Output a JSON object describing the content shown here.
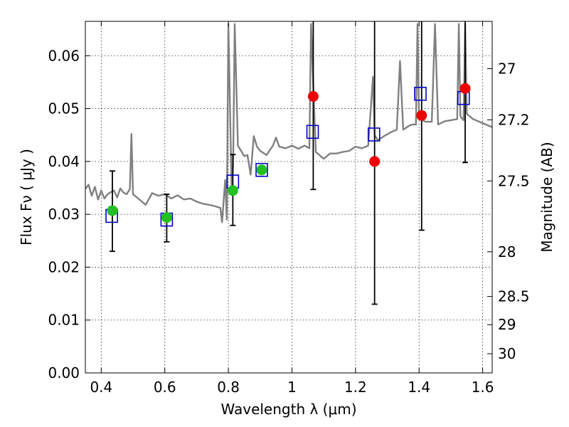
{
  "chart_data": {
    "type": "scatter",
    "xlabel": "Wavelength  λ (μm)",
    "ylabel": "Flux  Fν  ( μJy )",
    "y2label": "Magnitude (AB)",
    "xlim": [
      0.35,
      1.63
    ],
    "ylim": [
      0.0,
      0.0665
    ],
    "grid": true,
    "x_ticks": [
      0.4,
      0.6,
      0.8,
      1.0,
      1.2,
      1.4,
      1.6
    ],
    "x_tick_labels": [
      "0.4",
      "0.6",
      "0.8",
      "1",
      "1.2",
      "1.4",
      "1.6"
    ],
    "y_ticks": [
      0.0,
      0.01,
      0.02,
      0.03,
      0.04,
      0.05,
      0.06
    ],
    "y_tick_labels": [
      "0.00",
      "0.01",
      "0.02",
      "0.03",
      "0.04",
      "0.05",
      "0.06"
    ],
    "y2_ticks": [
      {
        "label": "27",
        "mag": 27.0
      },
      {
        "label": "27.2",
        "mag": 27.2
      },
      {
        "label": "27.5",
        "mag": 27.5
      },
      {
        "label": "28",
        "mag": 28.0
      },
      {
        "label": "28.5",
        "mag": 28.5
      },
      {
        "label": "29",
        "mag": 29.0
      },
      {
        "label": "30",
        "mag": 30.0
      }
    ],
    "colors": {
      "spectrum": "#808080",
      "model_box": "#0000cc",
      "detection": "#22c022",
      "upper_limit": "#ee0000",
      "errorbar": "#000000"
    },
    "spectrum": [
      [
        0.35,
        0.0348
      ],
      [
        0.36,
        0.0356
      ],
      [
        0.37,
        0.0335
      ],
      [
        0.38,
        0.0352
      ],
      [
        0.39,
        0.0328
      ],
      [
        0.4,
        0.0345
      ],
      [
        0.41,
        0.033
      ],
      [
        0.42,
        0.0338
      ],
      [
        0.43,
        0.0342
      ],
      [
        0.44,
        0.0345
      ],
      [
        0.45,
        0.0332
      ],
      [
        0.46,
        0.0349
      ],
      [
        0.47,
        0.0341
      ],
      [
        0.48,
        0.0338
      ],
      [
        0.49,
        0.0348
      ],
      [
        0.495,
        0.0452
      ],
      [
        0.5,
        0.0338
      ],
      [
        0.52,
        0.0328
      ],
      [
        0.54,
        0.0318
      ],
      [
        0.56,
        0.034
      ],
      [
        0.58,
        0.0335
      ],
      [
        0.6,
        0.0338
      ],
      [
        0.62,
        0.033
      ],
      [
        0.64,
        0.0336
      ],
      [
        0.66,
        0.0328
      ],
      [
        0.68,
        0.033
      ],
      [
        0.7,
        0.0324
      ],
      [
        0.72,
        0.032
      ],
      [
        0.74,
        0.0318
      ],
      [
        0.76,
        0.0315
      ],
      [
        0.775,
        0.0312
      ],
      [
        0.78,
        0.0285
      ],
      [
        0.79,
        0.0365
      ],
      [
        0.795,
        0.029
      ],
      [
        0.8,
        0.066
      ],
      [
        0.81,
        0.035
      ],
      [
        0.815,
        0.0395
      ],
      [
        0.82,
        0.066
      ],
      [
        0.83,
        0.043
      ],
      [
        0.84,
        0.042
      ],
      [
        0.85,
        0.041
      ],
      [
        0.86,
        0.0412
      ],
      [
        0.87,
        0.0375
      ],
      [
        0.88,
        0.0448
      ],
      [
        0.89,
        0.0428
      ],
      [
        0.9,
        0.042
      ],
      [
        0.92,
        0.0412
      ],
      [
        0.94,
        0.043
      ],
      [
        0.95,
        0.0445
      ],
      [
        0.96,
        0.0428
      ],
      [
        0.98,
        0.0425
      ],
      [
        1.0,
        0.043
      ],
      [
        1.02,
        0.0424
      ],
      [
        1.04,
        0.043
      ],
      [
        1.055,
        0.0425
      ],
      [
        1.06,
        0.066
      ],
      [
        1.075,
        0.0418
      ],
      [
        1.09,
        0.041
      ],
      [
        1.1,
        0.0405
      ],
      [
        1.12,
        0.0415
      ],
      [
        1.14,
        0.0415
      ],
      [
        1.16,
        0.0418
      ],
      [
        1.18,
        0.042
      ],
      [
        1.2,
        0.0428
      ],
      [
        1.22,
        0.0425
      ],
      [
        1.24,
        0.043
      ],
      [
        1.255,
        0.056
      ],
      [
        1.26,
        0.045
      ],
      [
        1.27,
        0.044
      ],
      [
        1.29,
        0.0448
      ],
      [
        1.31,
        0.0455
      ],
      [
        1.33,
        0.046
      ],
      [
        1.34,
        0.059
      ],
      [
        1.35,
        0.046
      ],
      [
        1.37,
        0.0468
      ],
      [
        1.38,
        0.047
      ],
      [
        1.39,
        0.047
      ],
      [
        1.395,
        0.066
      ],
      [
        1.4,
        0.0482
      ],
      [
        1.42,
        0.0475
      ],
      [
        1.44,
        0.0475
      ],
      [
        1.45,
        0.066
      ],
      [
        1.46,
        0.047
      ],
      [
        1.48,
        0.0476
      ],
      [
        1.5,
        0.0478
      ],
      [
        1.52,
        0.048
      ],
      [
        1.525,
        0.066
      ],
      [
        1.53,
        0.0485
      ],
      [
        1.54,
        0.0478
      ],
      [
        1.545,
        0.066
      ],
      [
        1.55,
        0.049
      ],
      [
        1.57,
        0.048
      ],
      [
        1.59,
        0.0475
      ],
      [
        1.61,
        0.047
      ],
      [
        1.63,
        0.0465
      ]
    ],
    "model_points": [
      {
        "x": 0.433,
        "y": 0.0297
      },
      {
        "x": 0.606,
        "y": 0.029
      },
      {
        "x": 0.814,
        "y": 0.0362
      },
      {
        "x": 0.905,
        "y": 0.0384
      },
      {
        "x": 1.065,
        "y": 0.0456
      },
      {
        "x": 1.258,
        "y": 0.0451
      },
      {
        "x": 1.404,
        "y": 0.0528
      },
      {
        "x": 1.54,
        "y": 0.052
      }
    ],
    "detections": [
      {
        "x": 0.435,
        "y": 0.0307,
        "lo": 0.023,
        "hi": 0.0382
      },
      {
        "x": 0.606,
        "y": 0.0294,
        "lo": 0.0248,
        "hi": 0.0338
      },
      {
        "x": 0.814,
        "y": 0.0345,
        "lo": 0.0279,
        "hi": 0.0413
      },
      {
        "x": 0.905,
        "y": 0.0384,
        "lo": null,
        "hi": null
      }
    ],
    "upper_limits": [
      {
        "x": 1.067,
        "y": 0.0523,
        "lo": 0.0347,
        "hi": 0.0665
      },
      {
        "x": 1.26,
        "y": 0.04,
        "lo": 0.013,
        "hi": 0.0665
      },
      {
        "x": 1.408,
        "y": 0.0487,
        "lo": 0.027,
        "hi": 0.0665
      },
      {
        "x": 1.545,
        "y": 0.0538,
        "lo": 0.0398,
        "hi": 0.0665
      }
    ]
  }
}
